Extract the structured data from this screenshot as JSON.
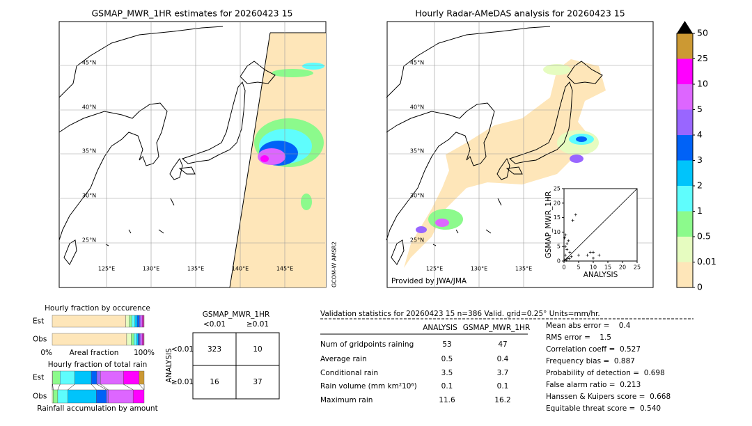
{
  "chart_data": [
    {
      "type": "map",
      "title": "GSMAP_MWR_1HR estimates for 20260423 15",
      "lat_labels": [
        "45°N",
        "40°N",
        "35°N",
        "30°N",
        "25°N"
      ],
      "lon_labels": [
        "125°E",
        "130°E",
        "135°E",
        "140°E",
        "145°E"
      ],
      "note": "GCOM-W AMSR2"
    },
    {
      "type": "map",
      "title": "Hourly Radar-AMeDAS analysis for 20260423 15",
      "lat_labels": [
        "45°N",
        "40°N",
        "35°N",
        "30°N",
        "25°N"
      ],
      "lon_labels": [
        "125°E",
        "130°E",
        "135°E"
      ],
      "note": "Provided by JWA/JMA"
    },
    {
      "type": "scatter",
      "x_label": "ANALYSIS",
      "y_label": "GSMAP_MWR_1HR",
      "xlim": [
        0,
        25
      ],
      "ylim": [
        0,
        25
      ],
      "xticks": [
        0,
        5,
        10,
        15,
        20,
        25
      ],
      "yticks": [
        0,
        5,
        10,
        15,
        20,
        25
      ],
      "x": [
        0,
        0.3,
        0.5,
        1,
        0.5,
        1,
        1.5,
        2,
        3,
        5,
        4,
        8,
        9,
        10,
        10,
        12,
        0.2,
        0.6,
        1.2,
        2.5,
        0.8,
        1.8
      ],
      "values": [
        0,
        0.5,
        2,
        4,
        5,
        6,
        7,
        3,
        14,
        2,
        16,
        2,
        3,
        1,
        3,
        2,
        8,
        9,
        1,
        1.5,
        0.3,
        0.8
      ]
    },
    {
      "type": "colorbar",
      "colors": [
        "#fee6b9",
        "#e6fcc0",
        "#8cfa8c",
        "#5ffdfd",
        "#00c4fb",
        "#0062f7",
        "#9966ff",
        "#dd66ff",
        "#ff00ff",
        "#cc9933"
      ],
      "ticks": [
        0,
        0.01,
        0.5,
        1,
        2,
        3,
        4,
        5,
        10,
        25,
        50
      ]
    },
    {
      "type": "stacked-bar",
      "title": "Hourly fraction by occurence",
      "categories": [
        "Est",
        "Obs"
      ],
      "x_label": "Areal fraction",
      "xlim": [
        0,
        100
      ],
      "xticks": [
        {
          "value": 0,
          "label": "0%"
        },
        {
          "value": 100,
          "label": "100%"
        }
      ],
      "stacks": [
        [
          80,
          4,
          2.5,
          3.5,
          2.5,
          2.5,
          1.5,
          1.5,
          1.5,
          0.5
        ],
        [
          81,
          5,
          3,
          3,
          1.5,
          1.5,
          1.5,
          1.5,
          1.5,
          0.5
        ]
      ]
    },
    {
      "type": "stacked-bar",
      "title": "Hourly fraction of total rain",
      "categories": [
        "Est",
        "Obs"
      ],
      "x_label": "Rainfall accumulation by amount",
      "xlim": [
        0,
        100
      ],
      "stacks": [
        [
          0,
          0.5,
          8,
          16,
          18,
          6,
          4,
          25,
          17,
          5.5
        ],
        [
          0,
          1,
          5,
          11,
          31,
          11,
          2,
          27,
          12,
          0
        ]
      ]
    }
  ],
  "contingency": {
    "title": "GSMAP_MWR_1HR",
    "col_labels": [
      "<0.01",
      "≥0.01"
    ],
    "row_title": "ANALYSIS",
    "row_labels": [
      "<0.01",
      "≥0.01"
    ],
    "cells": [
      [
        323,
        10
      ],
      [
        16,
        37
      ]
    ]
  },
  "validation": {
    "header": "Validation statistics for 20260423 15  n=386 Valid. grid=0.25° Units=mm/hr.",
    "columns": [
      "ANALYSIS",
      "GSMAP_MWR_1HR"
    ],
    "rows": [
      {
        "label": "Num of gridpoints raining",
        "values": [
          53,
          47
        ]
      },
      {
        "label": "Average rain",
        "values": [
          0.5,
          0.4
        ]
      },
      {
        "label": "Conditional rain",
        "values": [
          3.5,
          3.7
        ]
      },
      {
        "label": "Rain volume (mm km²10⁶)",
        "values": [
          0.1,
          0.1
        ]
      },
      {
        "label": "Maximum rain",
        "values": [
          11.6,
          16.2
        ]
      }
    ],
    "stats": [
      "Mean abs error =    0.4",
      "RMS error =    1.5",
      "Correlation coeff =  0.527",
      "Frequency bias =  0.887",
      "Probability of detection =  0.698",
      "False alarm ratio =  0.213",
      "Hanssen & Kuipers score =  0.668",
      "Equitable threat score =  0.540"
    ]
  }
}
